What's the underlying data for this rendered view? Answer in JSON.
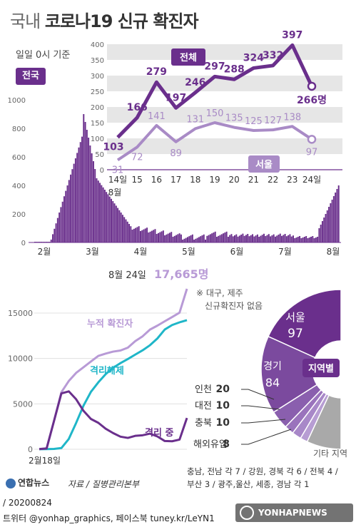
{
  "header": {
    "title_prefix": "국내",
    "title_main": "코로나19 신규 확진자",
    "base_time": "일일 0시 기준"
  },
  "national_chart": {
    "badge": "전국",
    "y_ticks": [
      "1000",
      "800",
      "600",
      "400",
      "200",
      "0"
    ],
    "month_labels": [
      "2월",
      "3월",
      "4월",
      "5월",
      "6월",
      "7월",
      "8월"
    ]
  },
  "chart_data": [
    {
      "type": "line",
      "name": "recent_14_days",
      "categories": [
        "14일",
        "15",
        "16",
        "17",
        "18",
        "19",
        "20",
        "21",
        "22",
        "23",
        "24일"
      ],
      "first_month_label": "8월",
      "y_ticks": [
        "400",
        "350",
        "300",
        "250",
        "200",
        "150",
        "100",
        "50",
        "0"
      ],
      "ylim": [
        0,
        400
      ],
      "series": [
        {
          "name": "전체",
          "values": [
            103,
            166,
            279,
            197,
            246,
            297,
            288,
            324,
            332,
            397,
            266
          ],
          "color": "#6a2f8c"
        },
        {
          "name": "서울",
          "values": [
            31,
            72,
            141,
            89,
            131,
            150,
            135,
            125,
            127,
            138,
            97
          ],
          "color": "#a98bc6"
        }
      ],
      "last_value_unit": "266명"
    },
    {
      "type": "line",
      "name": "cumulative",
      "headline_prefix": "8월 24일",
      "headline_value": "17,665명",
      "x_start_label": "2월18일",
      "y_ticks": [
        "15000",
        "10000",
        "5000",
        "0"
      ],
      "ylim": [
        0,
        17665
      ],
      "series_labels": [
        "누적 확진자",
        "격리해제",
        "격리 중"
      ],
      "colors": [
        "#b89ad6",
        "#1fb6c8",
        "#6a2f8c"
      ],
      "points_x": [
        0,
        1,
        2,
        3,
        4,
        5,
        6,
        7,
        8,
        9,
        10,
        11,
        12,
        13,
        14,
        15,
        16,
        17,
        18,
        19,
        20
      ],
      "cumulative": [
        30,
        104,
        3150,
        6284,
        7513,
        8413,
        9037,
        9661,
        10284,
        10537,
        10752,
        10874,
        11190,
        11902,
        12438,
        13181,
        13612,
        14092,
        14562,
        15039,
        17665
      ],
      "released": [
        10,
        16,
        41,
        134,
        1137,
        2909,
        4811,
        6325,
        7368,
        8277,
        8967,
        9484,
        9938,
        10422,
        10895,
        11459,
        12199,
        13183,
        13680,
        13975,
        14219
      ],
      "isolating": [
        20,
        88,
        3109,
        6150,
        6376,
        5504,
        4226,
        3336,
        2916,
        2260,
        1785,
        1390,
        1252,
        1480,
        1543,
        1722,
        1413,
        909,
        882,
        1064,
        3446
      ]
    },
    {
      "type": "pie",
      "name": "by_region",
      "label": "지역별",
      "slices": [
        {
          "label": "서울",
          "value": 97
        },
        {
          "label": "경기",
          "value": 84
        },
        {
          "label": "인천",
          "value": 20
        },
        {
          "label": "대전",
          "value": 10
        },
        {
          "label": "충북",
          "value": 10
        },
        {
          "label": "해외유입",
          "value": 8
        },
        {
          "label": "기타 지역",
          "value": 37
        }
      ],
      "legend_values": {
        "seoul": "97",
        "gyeonggi": "84",
        "incheon": "20",
        "daejeon": "10",
        "chungbuk": "10",
        "overseas": "8"
      },
      "legend_labels": {
        "seoul": "서울",
        "gyeonggi": "경기",
        "incheon": "인천",
        "daejeon": "대전",
        "chungbuk": "충북",
        "overseas": "해외유입",
        "other": "기타 지역"
      }
    }
  ],
  "notes": {
    "exclusion_line1": "※ 대구, 제주",
    "exclusion_line2": "신규확진자 없음",
    "provinces_line1": "충남, 전남 각 7 / 강원, 경북 각 6 / 전북 4 /",
    "provinces_line2": "부산 3 / 광주,울산, 세종, 경남 각 1"
  },
  "footer": {
    "logo": "연합뉴스",
    "source": "자료 / 질병관리본부",
    "date": "/ 20200824",
    "social": "트위터 @yonhap_graphics, 페이스북 tuney.kr/LeYN1",
    "watermark": "YONHAPNEWS"
  }
}
